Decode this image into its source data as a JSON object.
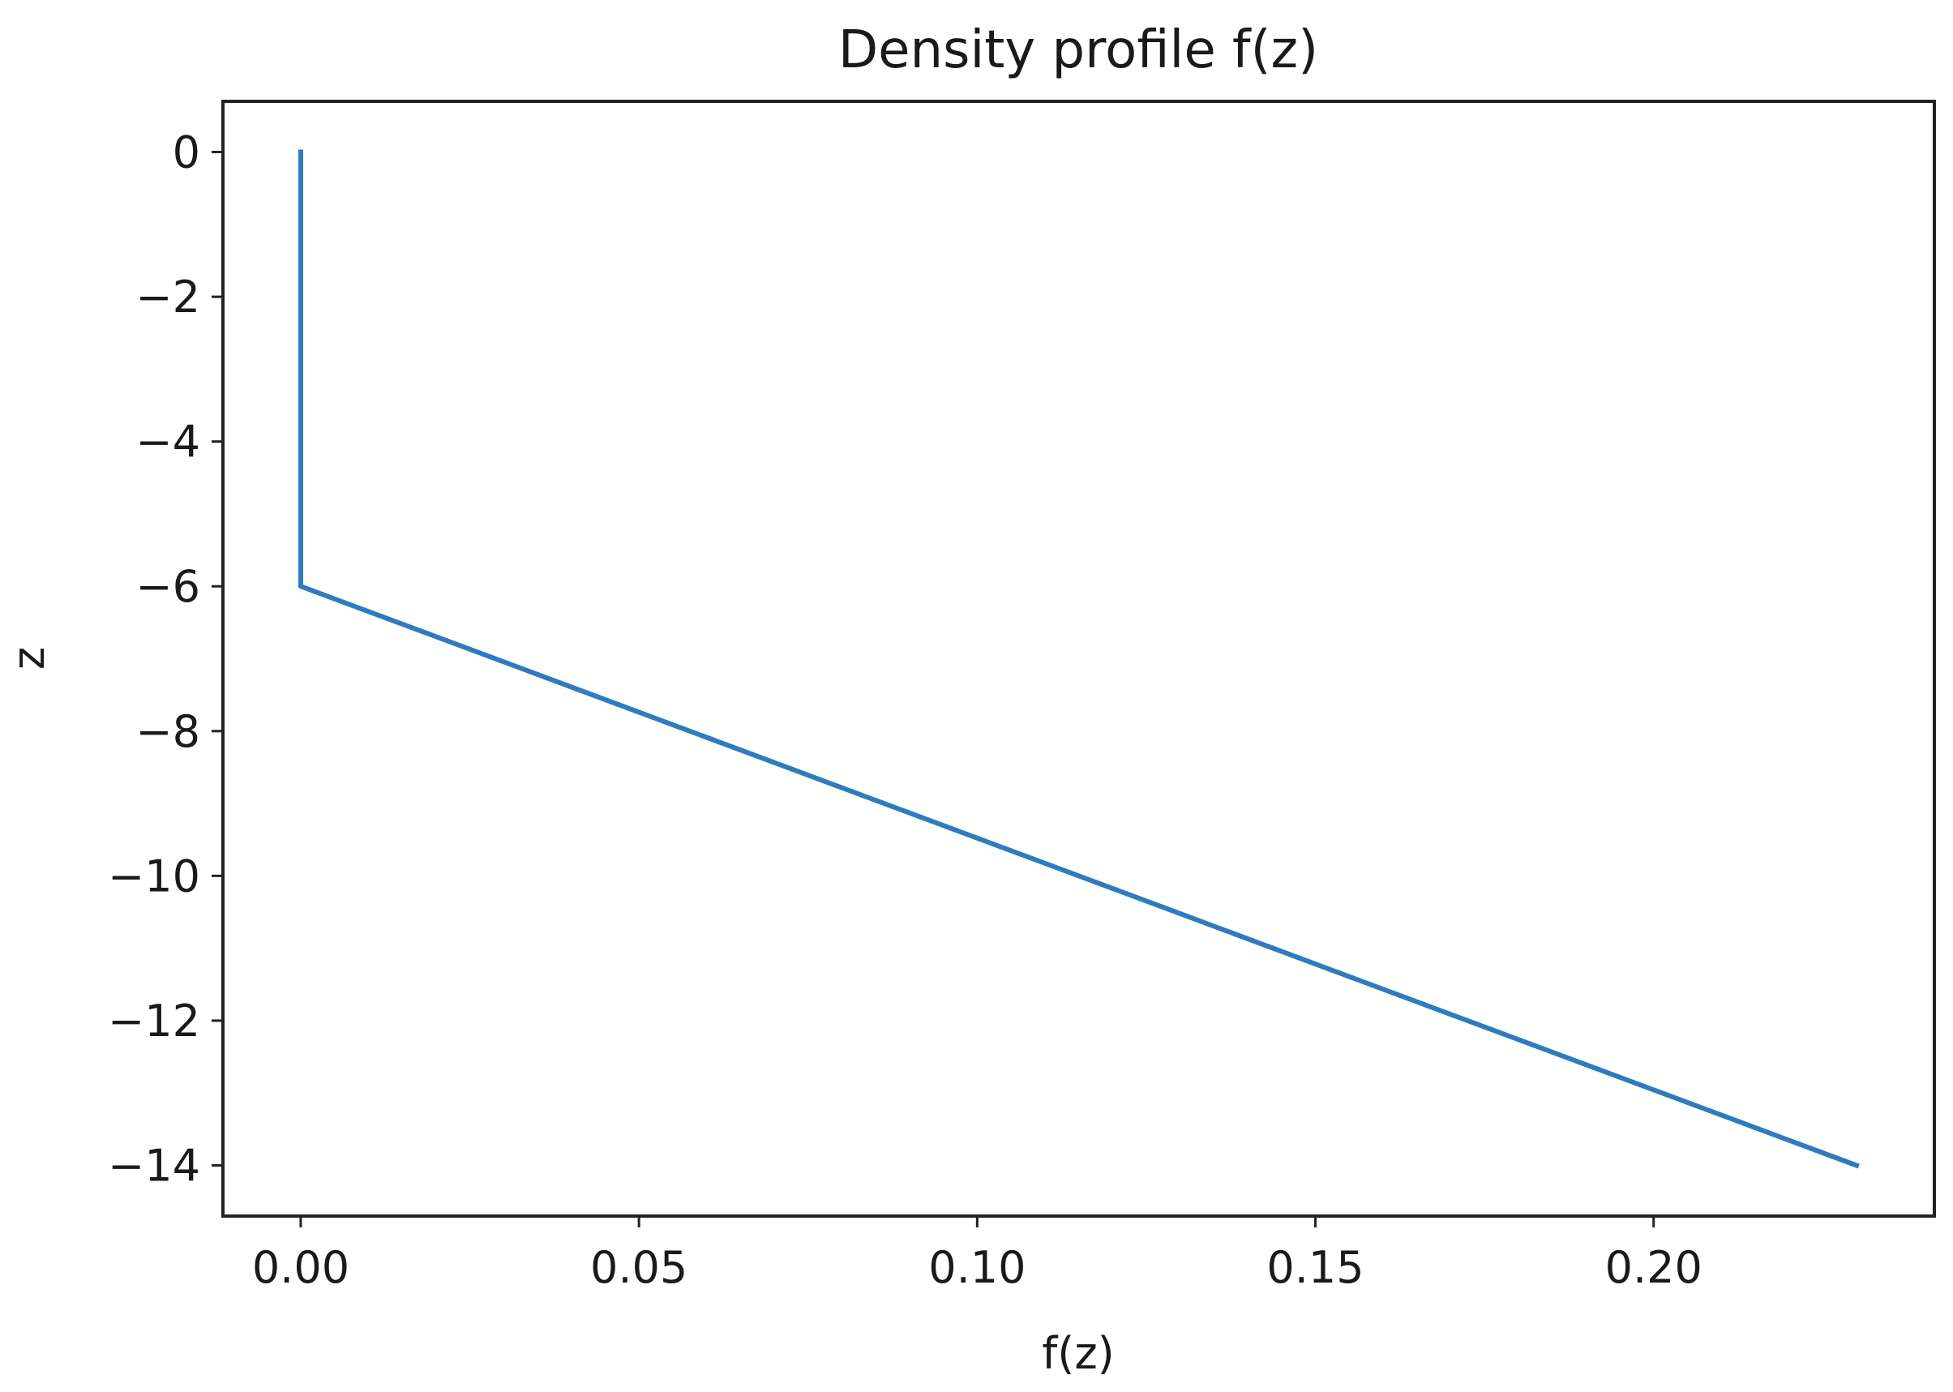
{
  "chart_data": {
    "type": "line",
    "title": "Density profile f(z)",
    "xlabel": "f(z)",
    "ylabel": "z",
    "xlim": [
      -0.0115,
      0.2415
    ],
    "ylim": [
      -14.7,
      0.7
    ],
    "x_ticks": [
      0.0,
      0.05,
      0.1,
      0.15,
      0.2
    ],
    "x_tick_labels": [
      "0.00",
      "0.05",
      "0.10",
      "0.15",
      "0.20"
    ],
    "y_ticks": [
      0,
      -2,
      -4,
      -6,
      -8,
      -10,
      -12,
      -14
    ],
    "y_tick_labels": [
      "0",
      "−2",
      "−4",
      "−6",
      "−8",
      "−10",
      "−12",
      "−14"
    ],
    "grid": false,
    "series": [
      {
        "color": "#2f7bbf",
        "x": [
          0.0,
          0.0,
          0.23
        ],
        "y": [
          0.0,
          -6.0,
          -14.0
        ]
      }
    ]
  }
}
